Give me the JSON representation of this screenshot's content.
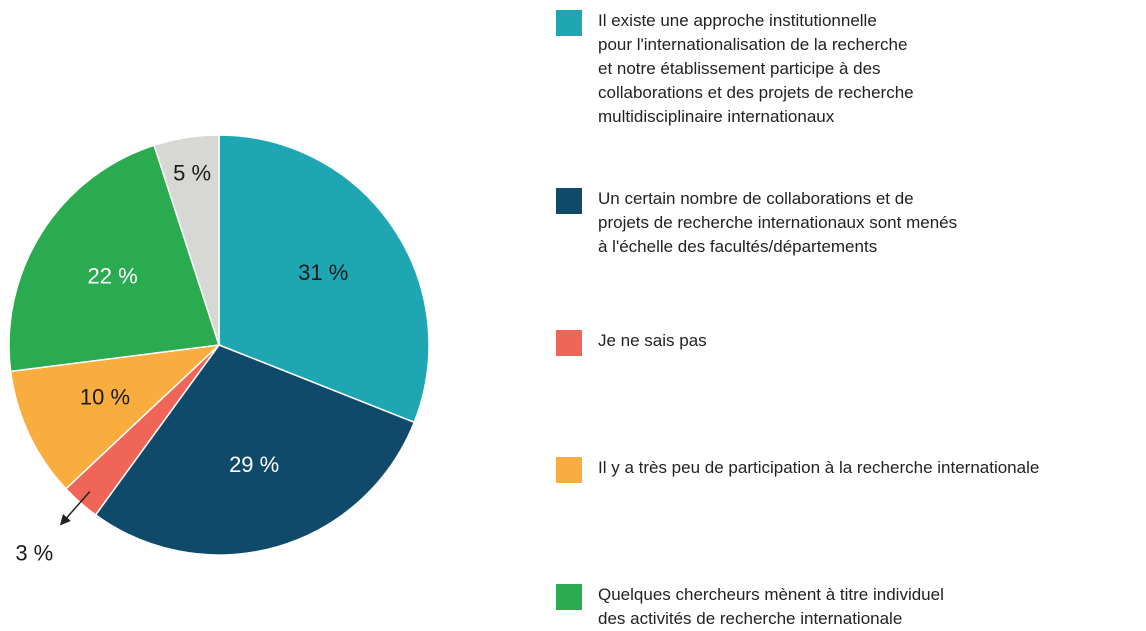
{
  "chart_data": {
    "type": "pie",
    "categories": [
      "Il existe une approche institutionnelle\npour l'internationalisation de la recherche\net notre établissement participe à des\ncollaborations et des projets de recherche\nmultidisciplinaire internationaux",
      "Un certain nombre de collaborations et de\nprojets de recherche internationaux sont menés\nà l'échelle des facultés/départements",
      "Je ne sais pas",
      "Il y a très peu de participation à la recherche internationale",
      "Quelques chercheurs mènent à titre individuel\ndes activités de recherche internationale",
      null
    ],
    "values": [
      31,
      29,
      3,
      10,
      22,
      5
    ],
    "value_labels": [
      "31 %",
      "29 %",
      "3 %",
      "10 %",
      "22 %",
      "5 %"
    ],
    "colors": [
      "#1fa6b3",
      "#0f4a6b",
      "#ef6558",
      "#f8ad3e",
      "#2bab50",
      "#d7d7d4"
    ],
    "label_colors": [
      "#1a1a1a",
      "#ffffff",
      "#1a1a1a",
      "#1a1a1a",
      "#ffffff",
      "#1a1a1a"
    ]
  }
}
